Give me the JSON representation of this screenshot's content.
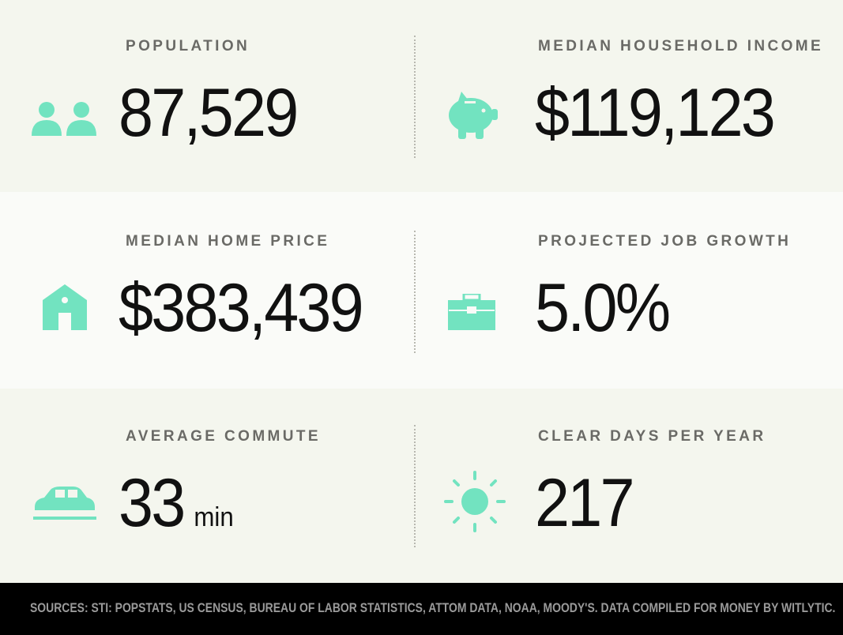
{
  "stats": [
    {
      "label": "POPULATION",
      "value": "87,529"
    },
    {
      "label": "MEDIAN HOUSEHOLD INCOME",
      "value": "$119,123"
    },
    {
      "label": "MEDIAN HOME PRICE",
      "value": "$383,439"
    },
    {
      "label": "PROJECTED JOB GROWTH",
      "value": "5.0%"
    },
    {
      "label": "AVERAGE COMMUTE",
      "value": "33",
      "unit": "min"
    },
    {
      "label": "CLEAR DAYS PER YEAR",
      "value": "217"
    }
  ],
  "footer": {
    "sources": "SOURCES: STI: POPSTATS, US CENSUS, BUREAU OF LABOR STATISTICS, ATTOM DATA, NOAA, MOODY'S. DATA COMPILED FOR MONEY BY WITLYTIC."
  }
}
